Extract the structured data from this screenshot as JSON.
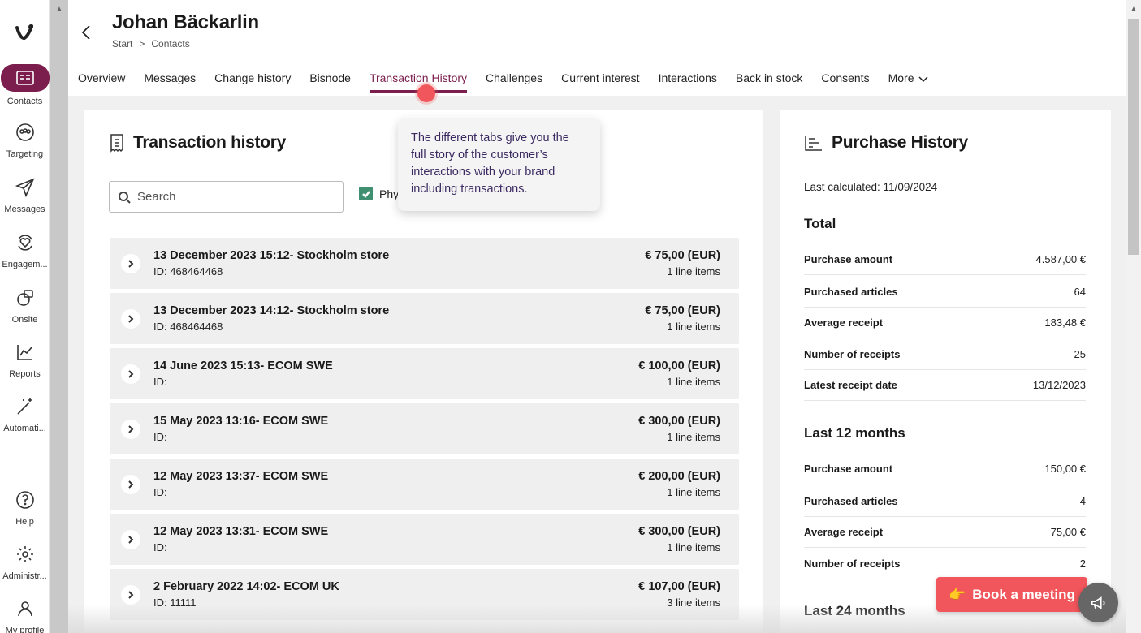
{
  "sidebar": {
    "items": [
      {
        "label": "Contacts",
        "icon": "contact-card-icon"
      },
      {
        "label": "Targeting",
        "icon": "audience-icon"
      },
      {
        "label": "Messages",
        "icon": "send-icon"
      },
      {
        "label": "Engagem...",
        "icon": "heart-cycle-icon"
      },
      {
        "label": "Onsite",
        "icon": "onsite-icon"
      },
      {
        "label": "Reports",
        "icon": "chart-line-icon"
      },
      {
        "label": "Automati...",
        "icon": "magic-wand-icon"
      },
      {
        "label": "Help",
        "icon": "help-icon"
      },
      {
        "label": "Administr...",
        "icon": "gear-icon"
      },
      {
        "label": "My profile",
        "icon": "user-icon"
      }
    ]
  },
  "header": {
    "title": "Johan Bäckarlin",
    "breadcrumb": [
      "Start",
      ">",
      "Contacts"
    ],
    "tabs": [
      "Overview",
      "Messages",
      "Change history",
      "Bisnode",
      "Transaction History",
      "Challenges",
      "Current interest",
      "Interactions",
      "Back in stock",
      "Consents",
      "More"
    ]
  },
  "transactions": {
    "title": "Transaction history",
    "search_placeholder": "Search",
    "checkbox_label": "Phy",
    "items": [
      {
        "name": "13 December 2023 15:12- Stockholm store",
        "id": "ID: 468464468",
        "amount": "€ 75,00 (EUR)",
        "items": "1 line items"
      },
      {
        "name": "13 December 2023 14:12- Stockholm store",
        "id": "ID: 468464468",
        "amount": "€ 75,00 (EUR)",
        "items": "1 line items"
      },
      {
        "name": "14 June 2023 15:13- ECOM SWE",
        "id": "ID:",
        "amount": "€ 100,00 (EUR)",
        "items": "1 line items"
      },
      {
        "name": "15 May 2023 13:16- ECOM SWE",
        "id": "ID:",
        "amount": "€ 300,00 (EUR)",
        "items": "1 line items"
      },
      {
        "name": "12 May 2023 13:37- ECOM SWE",
        "id": "ID:",
        "amount": "€ 200,00 (EUR)",
        "items": "1 line items"
      },
      {
        "name": "12 May 2023 13:31- ECOM SWE",
        "id": "ID:",
        "amount": "€ 300,00 (EUR)",
        "items": "1 line items"
      },
      {
        "name": "2 February 2022 14:02- ECOM UK",
        "id": "ID: 11111",
        "amount": "€ 107,00 (EUR)",
        "items": "3 line items"
      }
    ]
  },
  "tooltip": {
    "text": "The different tabs give you the full story of the customer’s interactions with your brand including transactions."
  },
  "purchase": {
    "title": "Purchase History",
    "last_calculated": "Last calculated: 11/09/2024",
    "total_title": "Total",
    "total": [
      {
        "k": "Purchase amount",
        "v": "4.587,00 €"
      },
      {
        "k": "Purchased articles",
        "v": "64"
      },
      {
        "k": "Average receipt",
        "v": "183,48 €"
      },
      {
        "k": "Number of receipts",
        "v": "25"
      },
      {
        "k": "Latest receipt date",
        "v": "13/12/2023"
      }
    ],
    "last12_title": "Last 12 months",
    "last12": [
      {
        "k": "Purchase amount",
        "v": "150,00 €"
      },
      {
        "k": "Purchased articles",
        "v": "4"
      },
      {
        "k": "Average receipt",
        "v": "75,00 €"
      },
      {
        "k": "Number of receipts",
        "v": "2"
      }
    ],
    "last24_title": "Last 24 months"
  },
  "cta": {
    "book_label": "Book a meeting",
    "book_emoji": "👉"
  },
  "colors": {
    "brand": "#7b1e4d",
    "accent": "#f0565b",
    "check": "#3f8f70"
  }
}
